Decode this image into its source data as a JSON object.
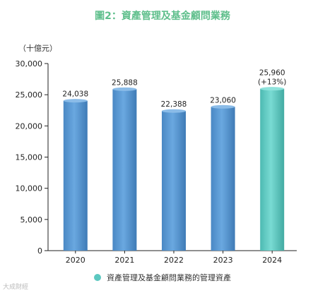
{
  "chart_data": {
    "type": "bar",
    "title": "圖2：資產管理及基金顧問業務",
    "unit_label": "（十億元）",
    "categories": [
      "2020",
      "2021",
      "2022",
      "2023",
      "2024"
    ],
    "values": [
      24038,
      25888,
      22388,
      23060,
      25960
    ],
    "value_labels": [
      "24,038",
      "25,888",
      "22,388",
      "23,060",
      "25,960"
    ],
    "extra_labels": [
      "",
      "",
      "",
      "",
      "(+13%)"
    ],
    "series": [
      {
        "name": "資產管理及基金顧問業務的管理資產",
        "values": [
          24038,
          25888,
          22388,
          23060,
          25960
        ]
      }
    ],
    "ylim": [
      0,
      30000
    ],
    "yticks": [
      0,
      5000,
      10000,
      15000,
      20000,
      25000,
      30000
    ],
    "ytick_labels": [
      "0",
      "5,000",
      "10,000",
      "15,000",
      "20,000",
      "25,000",
      "30,000"
    ],
    "grid": false,
    "legend_position": "bottom-center",
    "colors": {
      "bar": "#5b9bd5",
      "highlight": "#5cc8c0",
      "title": "#5fbf8c",
      "axis": "#222222"
    }
  },
  "watermark": "大成財經"
}
